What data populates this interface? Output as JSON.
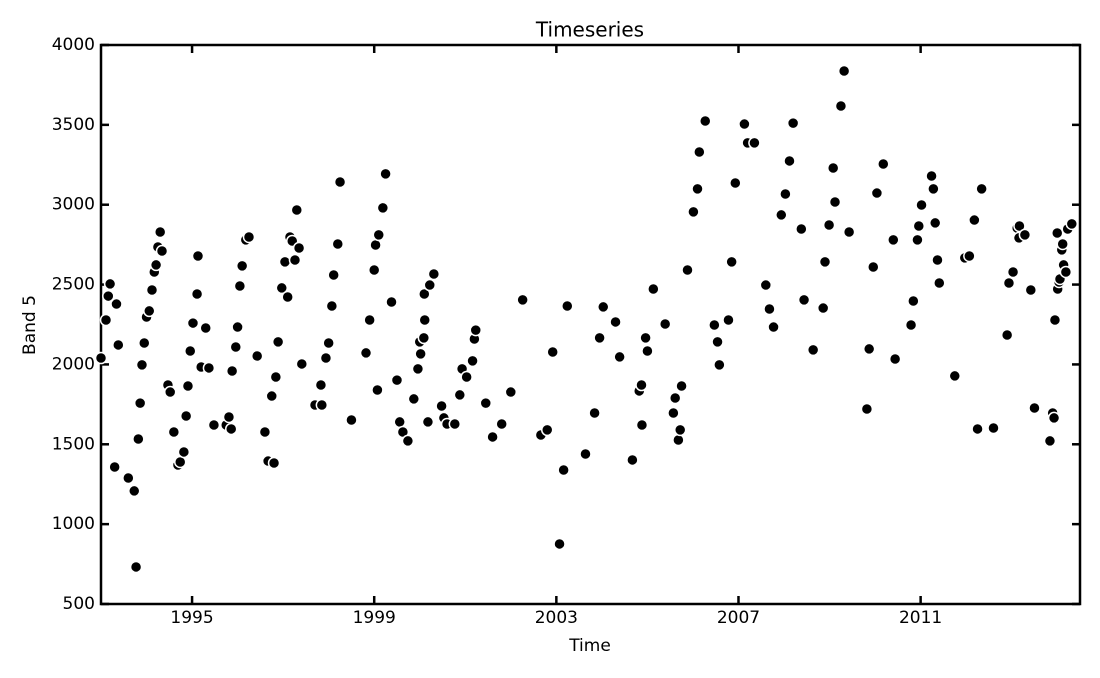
{
  "chart_data": {
    "type": "scatter",
    "title": "Timeseries",
    "x_label": "Time",
    "y_label": "Band 5",
    "color": "#000000",
    "xlim": [
      1993.0,
      2014.5
    ],
    "xticks": [
      1995,
      1999,
      2003,
      2007,
      2011
    ],
    "ylim": [
      500,
      4000
    ],
    "yticks": [
      500,
      1000,
      1500,
      2000,
      2500,
      3000,
      3500,
      4000
    ],
    "x": [
      1993.0,
      1993.11,
      1993.16,
      1993.2,
      1993.34,
      1993.38,
      1993.3,
      1993.6,
      1993.73,
      1993.77,
      1993.82,
      1993.86,
      1993.9,
      1993.95,
      1994.0,
      1994.06,
      1994.12,
      1994.17,
      1994.21,
      1994.25,
      1994.3,
      1994.34,
      1994.47,
      1994.52,
      1994.6,
      1994.69,
      1994.74,
      1994.82,
      1994.87,
      1994.91,
      1994.96,
      1995.02,
      1995.11,
      1995.13,
      1995.2,
      1995.3,
      1995.37,
      1995.48,
      1995.75,
      1995.81,
      1995.86,
      1995.88,
      1995.96,
      1996.0,
      1996.05,
      1996.1,
      1996.18,
      1996.25,
      1996.43,
      1996.6,
      1996.67,
      1996.8,
      1996.75,
      1996.84,
      1996.89,
      1996.97,
      1997.04,
      1997.1,
      1997.15,
      1997.2,
      1997.26,
      1997.3,
      1997.35,
      1997.41,
      1997.7,
      1997.85,
      1997.83,
      1997.94,
      1998.0,
      1998.07,
      1998.11,
      1998.2,
      1998.25,
      1998.5,
      1998.82,
      1998.9,
      1999.0,
      1999.03,
      1999.1,
      1999.19,
      1999.25,
      1999.07,
      1999.38,
      1999.5,
      1999.56,
      1999.63,
      1999.74,
      1999.87,
      1999.96,
      2000.0,
      2000.02,
      2000.09,
      2000.11,
      2000.1,
      2000.22,
      2000.31,
      2000.18,
      2000.48,
      2000.53,
      2000.6,
      2000.77,
      2000.88,
      2000.93,
      2001.03,
      2001.16,
      2001.2,
      2001.23,
      2001.45,
      2001.6,
      2001.8,
      2002.0,
      2002.26,
      2002.66,
      2002.8,
      2002.92,
      2003.07,
      2003.16,
      2003.24,
      2003.64,
      2003.84,
      2003.95,
      2004.03,
      2004.3,
      2004.39,
      2004.67,
      2004.82,
      2004.87,
      2004.88,
      2004.96,
      2005.0,
      2005.13,
      2005.39,
      2005.57,
      2005.61,
      2005.68,
      2005.72,
      2005.75,
      2005.88,
      2006.01,
      2006.1,
      2006.14,
      2006.27,
      2006.47,
      2006.54,
      2006.58,
      2006.78,
      2006.85,
      2006.93,
      2007.13,
      2007.2,
      2007.35,
      2007.6,
      2007.68,
      2007.77,
      2007.94,
      2008.03,
      2008.12,
      2008.2,
      2008.38,
      2008.44,
      2008.64,
      2008.86,
      2008.9,
      2008.99,
      2009.08,
      2009.12,
      2009.25,
      2009.32,
      2009.43,
      2009.82,
      2009.87,
      2009.96,
      2010.04,
      2010.18,
      2010.4,
      2010.44,
      2010.79,
      2010.84,
      2010.93,
      2010.96,
      2011.02,
      2011.24,
      2011.28,
      2011.32,
      2011.37,
      2011.41,
      2011.75,
      2011.97,
      2012.07,
      2012.18,
      2012.25,
      2012.34,
      2012.6,
      2012.94,
      2013.03,
      2012.9,
      2013.12,
      2013.16,
      2013.17,
      2013.29,
      2013.42,
      2013.5,
      2013.84,
      2013.9,
      2013.93,
      2013.95,
      2014.0,
      2014.01,
      2014.04,
      2014.06,
      2014.1,
      2014.14,
      2014.12,
      2014.19,
      2014.23,
      2014.32
    ],
    "values": [
      2040,
      2278,
      2428,
      2504,
      2378,
      2122,
      1358,
      1289,
      1208,
      732,
      1533,
      1758,
      1997,
      2134,
      2297,
      2335,
      2466,
      2579,
      2623,
      2735,
      2829,
      2710,
      1871,
      1827,
      1577,
      1370,
      1389,
      1452,
      1677,
      1865,
      2084,
      2259,
      2441,
      2679,
      1984,
      2228,
      1978,
      1621,
      1621,
      1671,
      1596,
      1959,
      2109,
      2234,
      2491,
      2617,
      2780,
      2798,
      2053,
      1577,
      1395,
      1383,
      1802,
      1921,
      2141,
      2479,
      2642,
      2422,
      2798,
      2773,
      2654,
      2967,
      2729,
      2003,
      1746,
      1746,
      1871,
      2040,
      2134,
      2366,
      2560,
      2754,
      3142,
      1652,
      2072,
      2278,
      2591,
      2748,
      2811,
      2980,
      3193,
      1840,
      2391,
      1902,
      1640,
      1577,
      1521,
      1784,
      1972,
      2141,
      2066,
      2166,
      2278,
      2441,
      2497,
      2566,
      1640,
      1740,
      1665,
      1627,
      1627,
      1809,
      1972,
      1921,
      2022,
      2159,
      2215,
      1758,
      1546,
      1627,
      1827,
      2404,
      1558,
      1590,
      2078,
      876,
      1339,
      2366,
      1439,
      1696,
      2166,
      2360,
      2266,
      2047,
      1402,
      1834,
      1871,
      1621,
      2166,
      2084,
      2472,
      2253,
      1696,
      1790,
      1527,
      1590,
      1865,
      2591,
      2955,
      3099,
      3330,
      3524,
      2247,
      2141,
      1997,
      2278,
      2642,
      3136,
      3505,
      3387,
      3387,
      2497,
      2347,
      2234,
      2936,
      3067,
      3274,
      3511,
      2848,
      2404,
      2091,
      2353,
      2642,
      2873,
      3230,
      3017,
      3618,
      3837,
      2829,
      1721,
      2097,
      2610,
      3073,
      3255,
      2780,
      2034,
      2247,
      2397,
      2780,
      2867,
      2998,
      3180,
      3099,
      2886,
      2654,
      2510,
      1928,
      2667,
      2679,
      2904,
      1596,
      3099,
      1602,
      2510,
      2579,
      2184,
      2854,
      2792,
      2867,
      2811,
      2466,
      1727,
      1521,
      1696,
      1665,
      2278,
      2823,
      2472,
      2516,
      2535,
      2717,
      2623,
      2754,
      2579,
      2848,
      2880
    ]
  }
}
